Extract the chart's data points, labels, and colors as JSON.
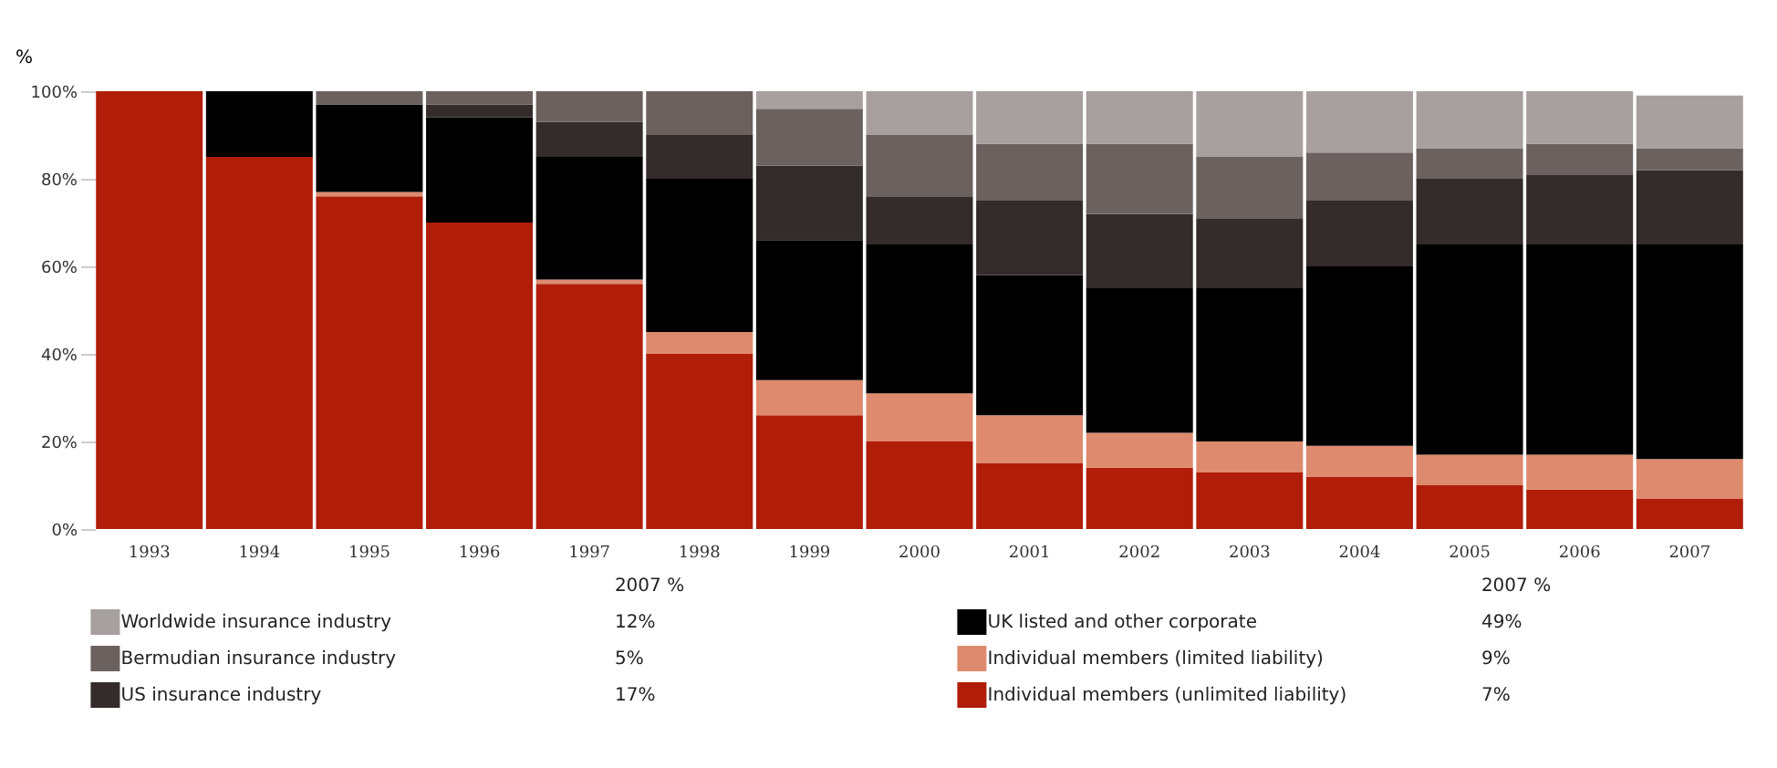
{
  "chart_data": {
    "type": "bar",
    "stacked": true,
    "ylabel": "%",
    "legend_title": "2007 %",
    "legend": "bottom",
    "grid": false,
    "categories": [
      "1993",
      "1994",
      "1995",
      "1996",
      "1997",
      "1998",
      "1999",
      "2000",
      "2001",
      "2002",
      "2003",
      "2004",
      "2005",
      "2006",
      "2007"
    ],
    "ylim": [
      0,
      100
    ],
    "yticks": [
      {
        "value": 0,
        "label": "0%"
      },
      {
        "value": 20,
        "label": "20%"
      },
      {
        "value": 40,
        "label": "40%"
      },
      {
        "value": 60,
        "label": "60%"
      },
      {
        "value": 80,
        "label": "80%"
      },
      {
        "value": 100,
        "label": "100%"
      }
    ],
    "annotations": [
      "12%",
      "5%",
      "17%",
      "49%",
      "9%",
      "7%"
    ],
    "series": [
      {
        "name": "Individual members   (unlimited liability)",
        "color": "#b01e0a",
        "values": [
          100,
          85,
          76,
          70,
          56,
          40,
          26,
          20,
          15,
          14,
          13,
          12,
          10,
          9,
          7
        ]
      },
      {
        "name": "Individual members (limited liability)",
        "color": "#de8a6e",
        "values": [
          0,
          0,
          1,
          0,
          1,
          5,
          8,
          11,
          11,
          8,
          7,
          7,
          7,
          8,
          9
        ]
      },
      {
        "name": "UK listed and other corporate",
        "color": "#000000",
        "values": [
          0,
          15,
          20,
          24,
          28,
          35,
          32,
          34,
          32,
          33,
          35,
          41,
          48,
          48,
          49
        ]
      },
      {
        "name": "US insurance industry",
        "color": "#332c2a",
        "values": [
          0,
          0,
          0,
          3,
          8,
          10,
          17,
          11,
          17,
          17,
          16,
          15,
          15,
          16,
          17
        ]
      },
      {
        "name": "Bermudian insurance industry",
        "color": "#6b6260",
        "values": [
          0,
          0,
          3,
          3,
          7,
          10,
          13,
          14,
          13,
          16,
          14,
          11,
          7,
          7,
          5
        ]
      },
      {
        "name": "Worldwide insurance industry",
        "color": "#a8a09e",
        "values": [
          0,
          0,
          0,
          0,
          0,
          0,
          4,
          10,
          12,
          12,
          15,
          14,
          13,
          12,
          12
        ]
      }
    ]
  }
}
